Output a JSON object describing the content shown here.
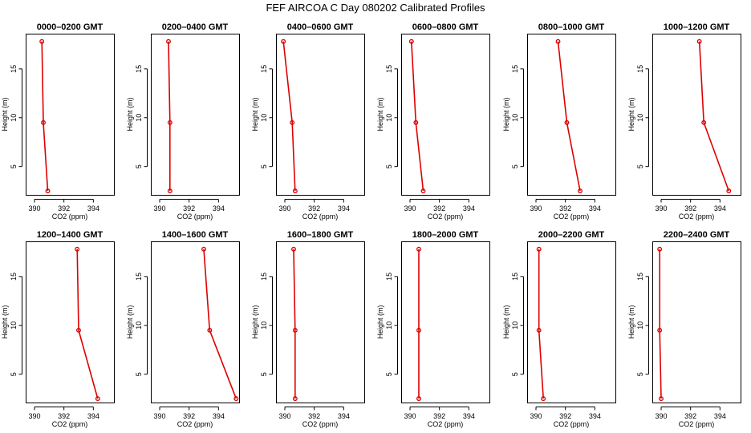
{
  "title": "FEF AIRCOA C  Day 080202  Calibrated Profiles",
  "chart_data": [
    {
      "type": "line",
      "title": "0000–0200 GMT",
      "xlabel": "CO2 (ppm)",
      "ylabel": "Height (m)",
      "xlim": [
        389.4,
        395.4
      ],
      "ylim": [
        2.1,
        18.6
      ],
      "x_ticks": [
        390,
        392,
        394
      ],
      "y_ticks": [
        5,
        10,
        15
      ],
      "series": [
        {
          "color": "#dd0000",
          "x": [
            390.5,
            390.6,
            390.9
          ],
          "y": [
            17.8,
            9.5,
            2.5
          ]
        }
      ]
    },
    {
      "type": "line",
      "title": "0200–0400 GMT",
      "xlabel": "CO2 (ppm)",
      "ylabel": "Height (m)",
      "xlim": [
        389.4,
        395.4
      ],
      "ylim": [
        2.1,
        18.6
      ],
      "x_ticks": [
        390,
        392,
        394
      ],
      "y_ticks": [
        5,
        10,
        15
      ],
      "series": [
        {
          "color": "#dd0000",
          "x": [
            390.6,
            390.7,
            390.7
          ],
          "y": [
            17.8,
            9.5,
            2.5
          ]
        }
      ]
    },
    {
      "type": "line",
      "title": "0400–0600 GMT",
      "xlabel": "CO2 (ppm)",
      "ylabel": "Height (m)",
      "xlim": [
        389.4,
        395.4
      ],
      "ylim": [
        2.1,
        18.6
      ],
      "x_ticks": [
        390,
        392,
        394
      ],
      "y_ticks": [
        5,
        10,
        15
      ],
      "series": [
        {
          "color": "#dd0000",
          "x": [
            389.9,
            390.5,
            390.7
          ],
          "y": [
            17.8,
            9.5,
            2.5
          ]
        }
      ]
    },
    {
      "type": "line",
      "title": "0600–0800 GMT",
      "xlabel": "CO2 (ppm)",
      "ylabel": "Height (m)",
      "xlim": [
        389.4,
        395.4
      ],
      "ylim": [
        2.1,
        18.6
      ],
      "x_ticks": [
        390,
        392,
        394
      ],
      "y_ticks": [
        5,
        10,
        15
      ],
      "series": [
        {
          "color": "#dd0000",
          "x": [
            390.1,
            390.4,
            390.9
          ],
          "y": [
            17.8,
            9.5,
            2.5
          ]
        }
      ]
    },
    {
      "type": "line",
      "title": "0800–1000 GMT",
      "xlabel": "CO2 (ppm)",
      "ylabel": "Height (m)",
      "xlim": [
        389.4,
        395.4
      ],
      "ylim": [
        2.1,
        18.6
      ],
      "x_ticks": [
        390,
        392,
        394
      ],
      "y_ticks": [
        5,
        10,
        15
      ],
      "series": [
        {
          "color": "#dd0000",
          "x": [
            391.5,
            392.1,
            393.0
          ],
          "y": [
            17.8,
            9.5,
            2.5
          ]
        }
      ]
    },
    {
      "type": "line",
      "title": "1000–1200 GMT",
      "xlabel": "CO2 (ppm)",
      "ylabel": "Height (m)",
      "xlim": [
        389.4,
        395.4
      ],
      "ylim": [
        2.1,
        18.6
      ],
      "x_ticks": [
        390,
        392,
        394
      ],
      "y_ticks": [
        5,
        10,
        15
      ],
      "series": [
        {
          "color": "#dd0000",
          "x": [
            392.6,
            392.9,
            394.6
          ],
          "y": [
            17.8,
            9.5,
            2.5
          ]
        }
      ]
    },
    {
      "type": "line",
      "title": "1200–1400 GMT",
      "xlabel": "CO2 (ppm)",
      "ylabel": "Height (m)",
      "xlim": [
        389.4,
        395.4
      ],
      "ylim": [
        2.1,
        18.6
      ],
      "x_ticks": [
        390,
        392,
        394
      ],
      "y_ticks": [
        5,
        10,
        15
      ],
      "series": [
        {
          "color": "#dd0000",
          "x": [
            392.9,
            393.0,
            394.3
          ],
          "y": [
            17.8,
            9.5,
            2.5
          ]
        }
      ]
    },
    {
      "type": "line",
      "title": "1400–1600 GMT",
      "xlabel": "CO2 (ppm)",
      "ylabel": "Height (m)",
      "xlim": [
        389.4,
        395.4
      ],
      "ylim": [
        2.1,
        18.6
      ],
      "x_ticks": [
        390,
        392,
        394
      ],
      "y_ticks": [
        5,
        10,
        15
      ],
      "series": [
        {
          "color": "#dd0000",
          "x": [
            393.0,
            393.4,
            395.2
          ],
          "y": [
            17.8,
            9.5,
            2.5
          ]
        }
      ]
    },
    {
      "type": "line",
      "title": "1600–1800 GMT",
      "xlabel": "CO2 (ppm)",
      "ylabel": "Height (m)",
      "xlim": [
        389.4,
        395.4
      ],
      "ylim": [
        2.1,
        18.6
      ],
      "x_ticks": [
        390,
        392,
        394
      ],
      "y_ticks": [
        5,
        10,
        15
      ],
      "series": [
        {
          "color": "#dd0000",
          "x": [
            390.6,
            390.7,
            390.7
          ],
          "y": [
            17.8,
            9.5,
            2.5
          ]
        }
      ]
    },
    {
      "type": "line",
      "title": "1800–2000 GMT",
      "xlabel": "CO2 (ppm)",
      "ylabel": "Height (m)",
      "xlim": [
        389.4,
        395.4
      ],
      "ylim": [
        2.1,
        18.6
      ],
      "x_ticks": [
        390,
        392,
        394
      ],
      "y_ticks": [
        5,
        10,
        15
      ],
      "series": [
        {
          "color": "#dd0000",
          "x": [
            390.6,
            390.6,
            390.6
          ],
          "y": [
            17.8,
            9.5,
            2.5
          ]
        }
      ]
    },
    {
      "type": "line",
      "title": "2000–2200 GMT",
      "xlabel": "CO2 (ppm)",
      "ylabel": "Height (m)",
      "xlim": [
        389.4,
        395.4
      ],
      "ylim": [
        2.1,
        18.6
      ],
      "x_ticks": [
        390,
        392,
        394
      ],
      "y_ticks": [
        5,
        10,
        15
      ],
      "series": [
        {
          "color": "#dd0000",
          "x": [
            390.2,
            390.2,
            390.5
          ],
          "y": [
            17.8,
            9.5,
            2.5
          ]
        }
      ]
    },
    {
      "type": "line",
      "title": "2200–2400 GMT",
      "xlabel": "CO2 (ppm)",
      "ylabel": "Height (m)",
      "xlim": [
        389.4,
        395.4
      ],
      "ylim": [
        2.1,
        18.6
      ],
      "x_ticks": [
        390,
        392,
        394
      ],
      "y_ticks": [
        5,
        10,
        15
      ],
      "series": [
        {
          "color": "#dd0000",
          "x": [
            389.9,
            389.9,
            390.0
          ],
          "y": [
            17.8,
            9.5,
            2.5
          ]
        }
      ]
    }
  ]
}
